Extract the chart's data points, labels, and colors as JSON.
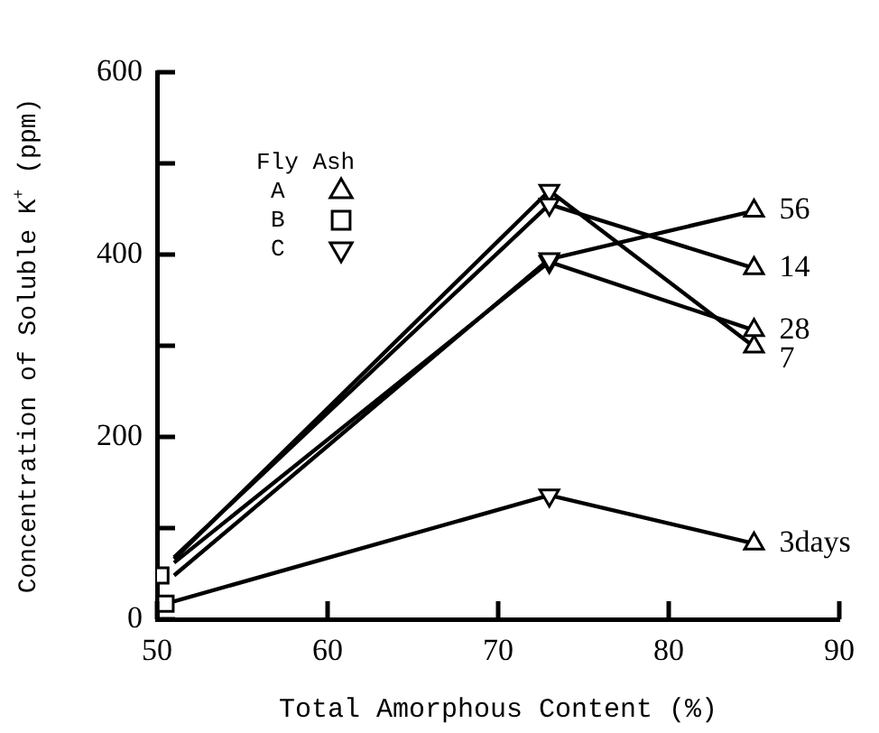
{
  "chart_data": {
    "type": "line",
    "xlabel": "Total Amorphous Content (%)",
    "ylabel": "Concentration of Soluble K$^{+}$ (ppm)",
    "legend_title": "Fly Ash",
    "legend": "top left",
    "xlim": [
      50,
      90
    ],
    "xticks": [
      50,
      60,
      70,
      80,
      90
    ],
    "ylim": [
      0,
      600
    ],
    "yticks": [
      0,
      {
        "value": 100,
        "label": null
      },
      200,
      {
        "value": 300,
        "label": null
      },
      400,
      {
        "value": 500,
        "label": null
      },
      600
    ],
    "grid": false,
    "series": [
      {
        "name": "3days",
        "color": "#000000",
        "marker": "none",
        "x": [
          50.5,
          73,
          85
        ],
        "values": [
          17,
          136,
          83
        ]
      },
      {
        "name": "7",
        "color": "#000000",
        "marker": "none",
        "x": [
          51,
          73,
          85
        ],
        "values": [
          66,
          470,
          299
        ]
      },
      {
        "name": "14",
        "color": "#000000",
        "marker": "none",
        "x": [
          51,
          73,
          85
        ],
        "values": [
          68,
          455,
          385
        ]
      },
      {
        "name": "28",
        "color": "#000000",
        "marker": "none",
        "x": [
          51,
          73,
          85
        ],
        "values": [
          62,
          392,
          317
        ]
      },
      {
        "name": "56",
        "color": "#000000",
        "marker": "none",
        "x": [
          51,
          73,
          85
        ],
        "values": [
          48,
          395,
          448
        ]
      },
      {
        "type": "scatter",
        "name": "A",
        "color": "#000000",
        "marker": "triangle",
        "x": [
          85,
          85,
          85,
          85,
          85
        ],
        "values": [
          83,
          299,
          385,
          317,
          448
        ]
      },
      {
        "type": "scatter",
        "name": "B",
        "color": "#000000",
        "marker": "square",
        "x": [
          50.2,
          50.5
        ],
        "values": [
          48,
          17
        ]
      },
      {
        "type": "scatter",
        "name": "C",
        "color": "#000000",
        "marker": "triangle_down",
        "x": [
          73,
          73,
          73,
          73,
          73
        ],
        "values": [
          136,
          470,
          455,
          392,
          395
        ]
      }
    ]
  }
}
